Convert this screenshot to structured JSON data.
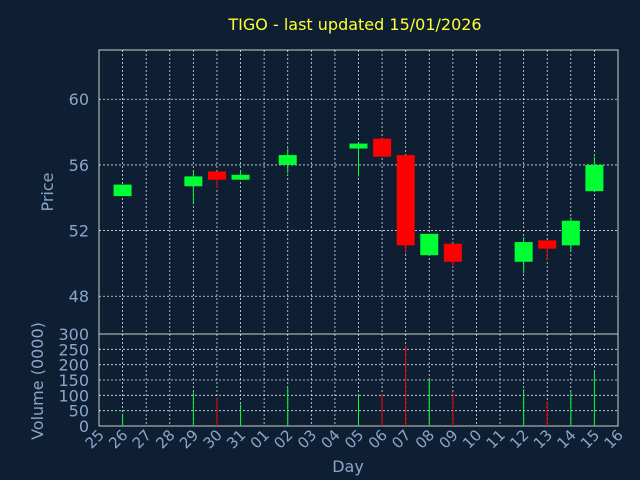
{
  "title": "TIGO - last updated 15/01/2026",
  "colors": {
    "background": "#0f1f33",
    "up": "#00ff33",
    "down": "#ff0000",
    "title": "#ffff33",
    "axis_text": "#8aa6c8",
    "grid": "#ffffff"
  },
  "chart_data": [
    {
      "type": "candlestick",
      "ylabel": "Price",
      "ylim": [
        45.7,
        63.0
      ],
      "yticks": [
        48,
        52,
        56,
        60
      ],
      "grid": true,
      "x": [
        "25",
        "26",
        "27",
        "28",
        "29",
        "30",
        "31",
        "01",
        "02",
        "03",
        "04",
        "05",
        "06",
        "07",
        "08",
        "09",
        "10",
        "11",
        "12",
        "13",
        "14",
        "15",
        "16"
      ],
      "candles": [
        {
          "day": "26",
          "open": 54.1,
          "close": 54.8,
          "high": 54.8,
          "low": 54.1
        },
        {
          "day": "29",
          "open": 54.7,
          "close": 55.3,
          "high": 55.6,
          "low": 53.6
        },
        {
          "day": "30",
          "open": 55.6,
          "close": 55.1,
          "high": 55.6,
          "low": 54.6
        },
        {
          "day": "31",
          "open": 55.1,
          "close": 55.4,
          "high": 55.7,
          "low": 55.1
        },
        {
          "day": "02",
          "open": 56.0,
          "close": 56.6,
          "high": 57.0,
          "low": 55.5
        },
        {
          "day": "05",
          "open": 57.0,
          "close": 57.3,
          "high": 57.3,
          "low": 55.3
        },
        {
          "day": "06",
          "open": 57.6,
          "close": 56.5,
          "high": 57.6,
          "low": 56.5
        },
        {
          "day": "07",
          "open": 56.6,
          "close": 51.1,
          "high": 56.6,
          "low": 50.6
        },
        {
          "day": "08",
          "open": 50.5,
          "close": 51.8,
          "high": 51.8,
          "low": 50.5
        },
        {
          "day": "09",
          "open": 51.2,
          "close": 50.1,
          "high": 51.2,
          "low": 49.8
        },
        {
          "day": "12",
          "open": 50.1,
          "close": 51.3,
          "high": 51.6,
          "low": 49.4
        },
        {
          "day": "13",
          "open": 51.4,
          "close": 50.9,
          "high": 51.4,
          "low": 50.2
        },
        {
          "day": "14",
          "open": 51.1,
          "close": 52.6,
          "high": 52.8,
          "low": 50.8
        },
        {
          "day": "15",
          "open": 54.4,
          "close": 56.0,
          "high": 56.5,
          "low": 54.4
        }
      ]
    },
    {
      "type": "bar",
      "ylabel": "Volume (0000)",
      "xlabel": "Day",
      "ylim": [
        0,
        300
      ],
      "yticks": [
        0,
        50,
        100,
        150,
        200,
        250,
        300
      ],
      "grid": true,
      "x": [
        "25",
        "26",
        "27",
        "28",
        "29",
        "30",
        "31",
        "01",
        "02",
        "03",
        "04",
        "05",
        "06",
        "07",
        "08",
        "09",
        "10",
        "11",
        "12",
        "13",
        "14",
        "15",
        "16"
      ],
      "bars": [
        {
          "day": "26",
          "value": 40,
          "dir": "up"
        },
        {
          "day": "29",
          "value": 110,
          "dir": "up"
        },
        {
          "day": "30",
          "value": 90,
          "dir": "down"
        },
        {
          "day": "31",
          "value": 70,
          "dir": "up"
        },
        {
          "day": "02",
          "value": 125,
          "dir": "up"
        },
        {
          "day": "05",
          "value": 105,
          "dir": "up"
        },
        {
          "day": "06",
          "value": 105,
          "dir": "down"
        },
        {
          "day": "07",
          "value": 260,
          "dir": "down"
        },
        {
          "day": "08",
          "value": 150,
          "dir": "up"
        },
        {
          "day": "09",
          "value": 110,
          "dir": "down"
        },
        {
          "day": "12",
          "value": 120,
          "dir": "up"
        },
        {
          "day": "13",
          "value": 80,
          "dir": "down"
        },
        {
          "day": "14",
          "value": 110,
          "dir": "up"
        },
        {
          "day": "15",
          "value": 180,
          "dir": "up"
        }
      ]
    }
  ]
}
